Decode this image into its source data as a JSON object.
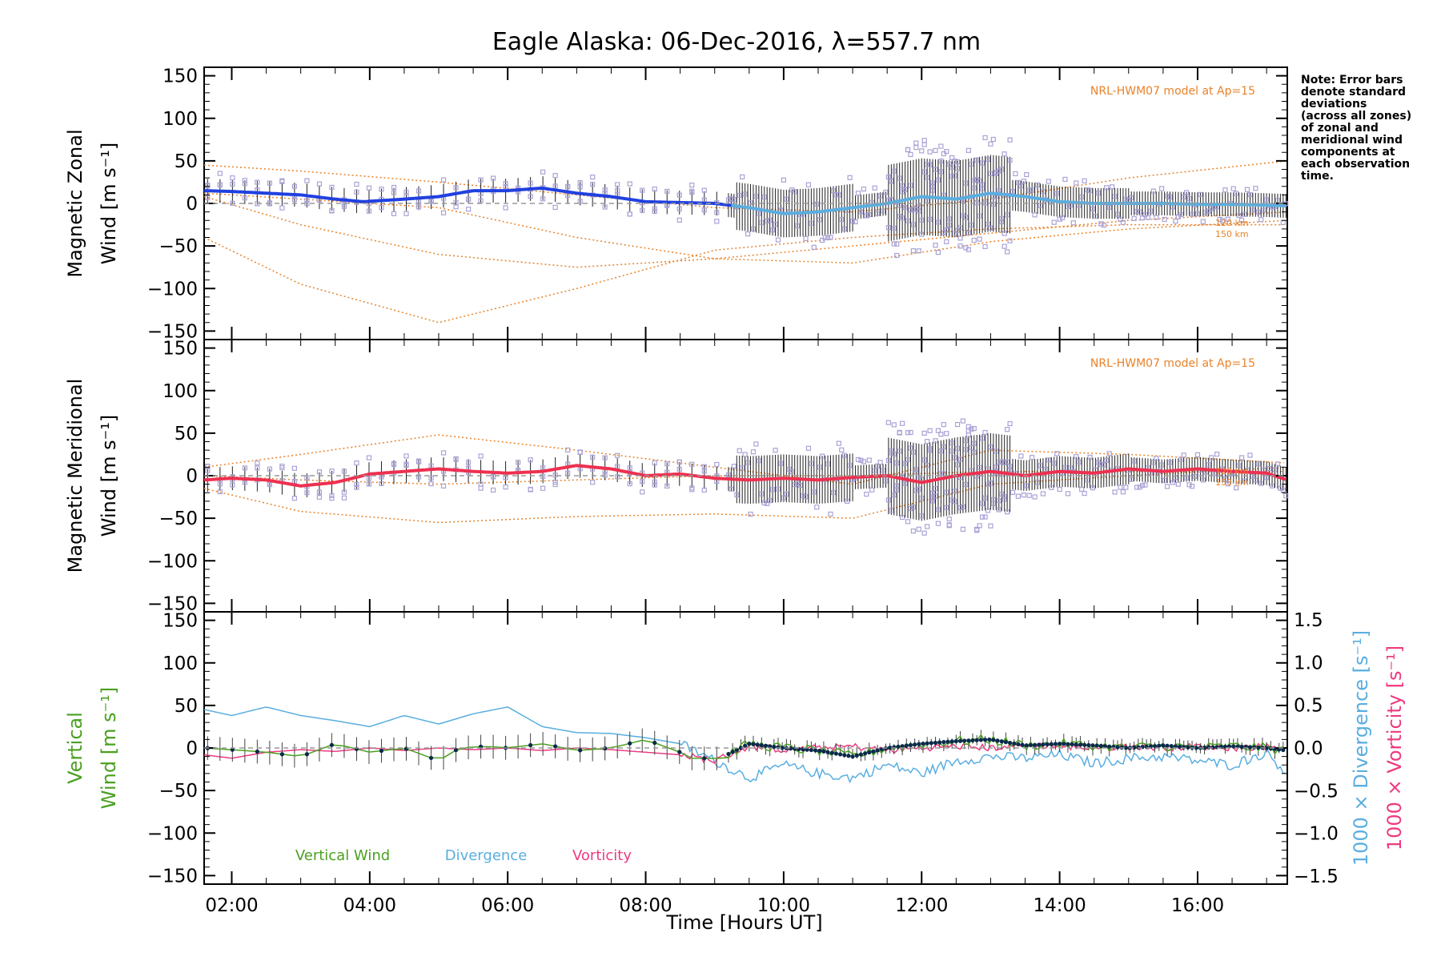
{
  "title": "Eagle Alaska: 06-Dec-2016, λ=557.7 nm",
  "note": [
    "Note: Error bars",
    "denote standard",
    "deviations",
    "(across all zones)",
    "of zonal and",
    "meridional wind",
    "components at",
    "each observation",
    "time."
  ],
  "x_axis": {
    "label": "Time [Hours UT]",
    "ticks": [
      "02:00",
      "04:00",
      "06:00",
      "08:00",
      "10:00",
      "12:00",
      "14:00",
      "16:00"
    ],
    "range_hours": [
      1.6,
      17.3
    ]
  },
  "panels": {
    "zonal": {
      "ylabel_line1": "Magnetic Zonal",
      "ylabel_line2": "Wind [m s⁻¹]",
      "model_label": "NRL-HWM07 model at Ap=15",
      "alt_label_1": "120 km",
      "alt_label_2": "150 km"
    },
    "meridional": {
      "ylabel_line1": "Magnetic Meridional",
      "ylabel_line2": "Wind [m s⁻¹]",
      "model_label": "NRL-HWM07 model at Ap=15",
      "alt_label_1": "120 km",
      "alt_label_2": "150 km"
    },
    "vertical": {
      "ylabel_line1": "Vertical",
      "ylabel_line2": "Wind [m s⁻¹]",
      "right_label_div": "1000 × Divergence [s⁻¹]",
      "right_label_vort": "1000 × Vorticity [s⁻¹]",
      "legend": [
        "Vertical Wind",
        "Divergence",
        "Vorticity"
      ]
    }
  },
  "y_ticks_left": [
    "150",
    "100",
    "50",
    "0",
    "−50",
    "−100",
    "−150"
  ],
  "y_ticks_right": [
    "1.5",
    "1.0",
    "0.5",
    "0.0",
    "−0.5",
    "−1.0",
    "−1.5"
  ],
  "colors": {
    "zonal_line": "#2040e0",
    "zonal_line_late": "#5aaee0",
    "meridional_line": "#ee3050",
    "model": "#e8832a",
    "scatter": "#a9a3d6",
    "vertical": "#4aa020",
    "divergence": "#5aaee0",
    "vorticity": "#ee3a80",
    "label_green": "#4aa020",
    "label_blue": "#5aaee0",
    "label_pink": "#ee3a80"
  },
  "chart_data": [
    {
      "type": "line",
      "title": "Eagle Alaska: 06-Dec-2016, λ=557.7 nm",
      "xlabel": "Time [Hours UT]",
      "ylabel": "Magnetic Zonal Wind [m s⁻¹]",
      "ylim": [
        -160,
        160
      ],
      "xlim_hours": [
        1.6,
        17.3
      ],
      "series": [
        {
          "name": "",
          "x": [
            1.6,
            2.0,
            2.5,
            3.0,
            3.5,
            3.9,
            4.5,
            5.0,
            5.5,
            6.0,
            6.5,
            7.0,
            7.5,
            8.0,
            8.5,
            9.0,
            9.5,
            10.0,
            10.5,
            11.0,
            11.5,
            12.0,
            12.5,
            13.0,
            13.5,
            14.0,
            14.5,
            15.0,
            15.5,
            16.0,
            16.5,
            17.0,
            17.3
          ],
          "y": [
            15,
            14,
            12,
            10,
            5,
            2,
            5,
            8,
            15,
            15,
            18,
            12,
            8,
            2,
            1,
            0,
            -5,
            -12,
            -10,
            -5,
            0,
            8,
            5,
            12,
            8,
            2,
            0,
            0,
            0,
            -1,
            -1,
            -2,
            -3
          ]
        }
      ],
      "model_curves": [
        {
          "x": [
            1.6,
            3.0,
            5.0,
            7.0,
            9.0,
            11.0,
            13.0,
            15.0,
            17.3
          ],
          "y": [
            45,
            38,
            25,
            10,
            -5,
            -10,
            5,
            30,
            50
          ]
        },
        {
          "x": [
            1.6,
            3.0,
            5.0,
            7.0,
            9.0,
            11.0,
            13.0,
            15.0,
            17.3
          ],
          "y": [
            -40,
            -95,
            -140,
            -100,
            -55,
            -40,
            -30,
            -25,
            -25
          ]
        },
        {
          "x": [
            1.6,
            3.0,
            5.0,
            7.0,
            9.0,
            11.0,
            13.0,
            15.0,
            17.3
          ],
          "y": [
            8,
            -25,
            -60,
            -75,
            -65,
            -50,
            -35,
            -20,
            -10
          ]
        },
        {
          "x": [
            1.6,
            3.0,
            5.0,
            7.0,
            9.0,
            11.0,
            13.0,
            15.0,
            17.3
          ],
          "y": [
            12,
            5,
            -5,
            -40,
            -65,
            -70,
            -45,
            -30,
            -20
          ]
        }
      ]
    },
    {
      "type": "line",
      "ylabel": "Magnetic Meridional Wind [m s⁻¹]",
      "ylim": [
        -160,
        160
      ],
      "xlim_hours": [
        1.6,
        17.3
      ],
      "series": [
        {
          "name": "",
          "x": [
            1.6,
            2.0,
            2.5,
            3.0,
            3.5,
            4.0,
            4.5,
            5.0,
            5.5,
            6.0,
            6.5,
            7.0,
            7.5,
            8.0,
            8.5,
            9.0,
            9.5,
            10.0,
            10.5,
            11.0,
            11.5,
            12.0,
            12.5,
            13.0,
            13.5,
            14.0,
            14.5,
            15.0,
            15.5,
            16.0,
            16.5,
            17.0,
            17.3
          ],
          "y": [
            -5,
            -3,
            -5,
            -12,
            -8,
            2,
            5,
            8,
            5,
            3,
            5,
            12,
            8,
            0,
            2,
            -3,
            -5,
            -3,
            -5,
            -2,
            0,
            -8,
            0,
            5,
            0,
            5,
            3,
            8,
            5,
            8,
            5,
            3,
            -5
          ]
        }
      ],
      "model_curves": [
        {
          "x": [
            1.6,
            3.0,
            5.0,
            7.0,
            9.0,
            11.0,
            13.0,
            15.0,
            17.3
          ],
          "y": [
            10,
            25,
            48,
            30,
            10,
            -10,
            30,
            25,
            15
          ]
        },
        {
          "x": [
            1.6,
            3.0,
            5.0,
            7.0,
            9.0,
            11.0,
            13.0,
            15.0,
            17.3
          ],
          "y": [
            -15,
            -42,
            -55,
            -48,
            -45,
            -50,
            -10,
            0,
            10
          ]
        },
        {
          "x": [
            1.6,
            3.0,
            5.0,
            7.0,
            9.0,
            11.0,
            13.0,
            15.0,
            17.3
          ],
          "y": [
            0,
            -5,
            -10,
            -5,
            0,
            0,
            5,
            5,
            5
          ]
        }
      ]
    },
    {
      "type": "line",
      "ylabel": "Vertical Wind [m s⁻¹]",
      "ylim": [
        -160,
        160
      ],
      "y2lim": [
        -1.5,
        1.5
      ],
      "xlim_hours": [
        1.6,
        17.3
      ],
      "series": [
        {
          "name": "Vertical Wind",
          "x": [
            1.6,
            2.0,
            2.5,
            3.0,
            3.5,
            4.0,
            4.5,
            5.0,
            5.3,
            5.7,
            6.0,
            6.5,
            7.0,
            7.5,
            8.0,
            8.5,
            9.0,
            9.5,
            10.0,
            10.5,
            11.0,
            11.5,
            12.0,
            12.5,
            13.0,
            13.5,
            14.0,
            14.5,
            15.0,
            15.5,
            16.0,
            16.5,
            17.0,
            17.3
          ],
          "y": [
            0,
            -2,
            -5,
            -10,
            5,
            -5,
            0,
            -15,
            0,
            2,
            0,
            5,
            -3,
            0,
            10,
            -5,
            -15,
            5,
            0,
            -3,
            -10,
            0,
            5,
            8,
            10,
            3,
            5,
            3,
            0,
            3,
            0,
            2,
            0,
            -3
          ]
        },
        {
          "name": "Divergence",
          "x": [
            1.6,
            2.0,
            2.5,
            3.0,
            3.5,
            4.0,
            4.5,
            5.0,
            5.5,
            6.0,
            6.5,
            7.0,
            7.5,
            8.0,
            8.5,
            9.0,
            9.5,
            10.0,
            10.5,
            11.0,
            11.5,
            12.0,
            12.5,
            13.0,
            13.5,
            14.0,
            14.5,
            15.0,
            15.5,
            16.0,
            16.5,
            17.0,
            17.3
          ],
          "y": [
            0.45,
            0.38,
            0.48,
            0.38,
            0.32,
            0.25,
            0.38,
            0.28,
            0.4,
            0.48,
            0.25,
            0.18,
            0.17,
            0.12,
            0.05,
            -0.15,
            -0.35,
            -0.2,
            -0.3,
            -0.35,
            -0.2,
            -0.3,
            -0.15,
            -0.1,
            -0.12,
            -0.08,
            -0.18,
            -0.12,
            -0.1,
            -0.15,
            -0.2,
            -0.05,
            -0.3
          ]
        },
        {
          "name": "Vorticity",
          "x": [
            1.6,
            2.0,
            2.5,
            3.0,
            3.5,
            4.0,
            4.5,
            5.0,
            5.5,
            6.0,
            6.5,
            7.0,
            7.5,
            8.0,
            8.5,
            9.0,
            9.5,
            10.0,
            10.5,
            11.0,
            11.5,
            12.0,
            12.5,
            13.0,
            13.5,
            14.0,
            14.5,
            15.0,
            15.5,
            16.0,
            16.5,
            17.0,
            17.3
          ],
          "y": [
            -0.08,
            -0.12,
            -0.05,
            -0.02,
            -0.04,
            0.0,
            -0.03,
            0.0,
            -0.02,
            0.0,
            -0.03,
            0.0,
            -0.02,
            -0.05,
            -0.08,
            -0.15,
            0.02,
            -0.02,
            0.0,
            0.02,
            -0.03,
            0.0,
            0.02,
            0.0,
            0.03,
            0.02,
            0.0,
            0.02,
            0.0,
            0.02,
            0.0,
            0.02,
            0.0
          ]
        }
      ]
    }
  ]
}
